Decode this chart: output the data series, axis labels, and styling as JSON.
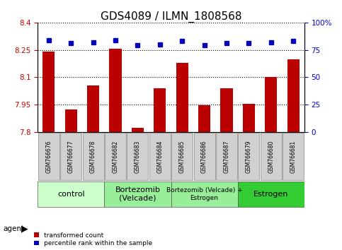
{
  "title": "GDS4089 / ILMN_1808568",
  "samples": [
    "GSM766676",
    "GSM766677",
    "GSM766678",
    "GSM766682",
    "GSM766683",
    "GSM766684",
    "GSM766685",
    "GSM766686",
    "GSM766687",
    "GSM766679",
    "GSM766680",
    "GSM766681"
  ],
  "bar_values": [
    8.24,
    7.925,
    8.055,
    8.255,
    7.825,
    8.04,
    8.18,
    7.945,
    8.04,
    7.955,
    8.1,
    8.2
  ],
  "percentile_values": [
    84,
    81,
    82,
    84,
    79,
    80,
    83,
    79,
    81,
    81,
    82,
    83
  ],
  "ylim": [
    7.8,
    8.4
  ],
  "yticks": [
    7.8,
    7.95,
    8.1,
    8.25,
    8.4
  ],
  "ytick_labels": [
    "7.8",
    "7.95",
    "8.1",
    "8.25",
    "8.4"
  ],
  "right_yticks": [
    0,
    25,
    50,
    75,
    100
  ],
  "right_ytick_labels": [
    "0",
    "25",
    "50",
    "75",
    "100%"
  ],
  "bar_color": "#bb0000",
  "dot_color": "#0000bb",
  "groups": [
    {
      "label": "control",
      "start": 0,
      "end": 3,
      "color": "#ccffcc",
      "fontsize": 8
    },
    {
      "label": "Bortezomib\n(Velcade)",
      "start": 3,
      "end": 6,
      "color": "#99ee99",
      "fontsize": 8
    },
    {
      "label": "Bortezomib (Velcade) +\nEstrogen",
      "start": 6,
      "end": 9,
      "color": "#99ee99",
      "fontsize": 6.5
    },
    {
      "label": "Estrogen",
      "start": 9,
      "end": 12,
      "color": "#33cc33",
      "fontsize": 8
    }
  ],
  "agent_label": "agent",
  "legend_bar_label": "transformed count",
  "legend_dot_label": "percentile rank within the sample",
  "title_fontsize": 11,
  "tick_fontsize": 7.5,
  "axis_label_color_left": "#cc0000",
  "axis_label_color_right": "#0000cc",
  "sample_box_color": "#d0d0d0",
  "bar_width": 0.55
}
